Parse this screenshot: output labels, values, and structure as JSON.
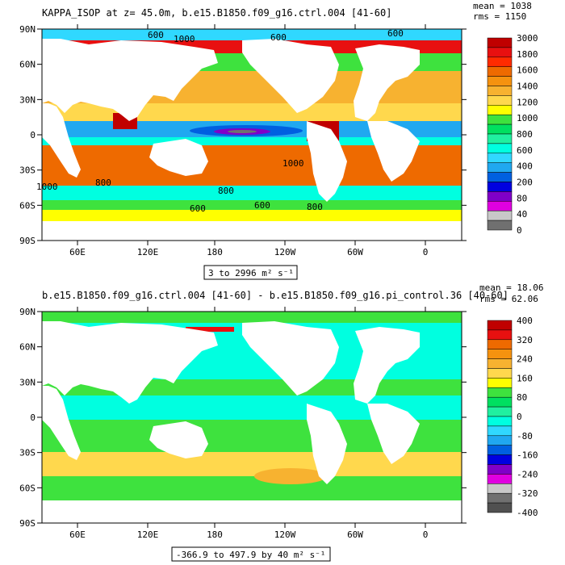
{
  "panels": [
    {
      "title": "KAPPA_ISOP at z=  45.0m, b.e15.B1850.f09_g16.ctrl.004 [41-60]",
      "mean_label": "mean = 1038",
      "rms_label": "rms = 1150",
      "range_label": "3 to 2996 m² s⁻¹",
      "y_labels": [
        "90N",
        "60N",
        "30N",
        "0",
        "30S",
        "60S",
        "90S"
      ],
      "x_labels": [
        "60E",
        "120E",
        "180",
        "120W",
        "60W",
        "0"
      ],
      "colorbar": {
        "labels": [
          "3000",
          "1800",
          "1600",
          "1400",
          "1200",
          "1000",
          "800",
          "600",
          "400",
          "200",
          "80",
          "40",
          "0"
        ],
        "colors": [
          "#c00000",
          "#e81010",
          "#ff2b00",
          "#ee6a00",
          "#f5920f",
          "#f7b230",
          "#ffd84d",
          "#ffff00",
          "#3ee23e",
          "#00e060",
          "#20f0a0",
          "#00ffe0",
          "#30d8ff",
          "#20a8f0",
          "#0060e0",
          "#0000e0",
          "#8000c8",
          "#e000e0",
          "#c8c8c8",
          "#707070"
        ]
      }
    },
    {
      "title": "b.e15.B1850.f09_g16.ctrl.004 [41-60] - b.e15.B1850.f09_g16.pi_control.36 [40-60]",
      "mean_label": "mean = 18.06",
      "rms_label": "rms = 62.06",
      "range_label": "-366.9 to 497.9 by 40 m² s⁻¹",
      "y_labels": [
        "90N",
        "60N",
        "30N",
        "0",
        "30S",
        "60S",
        "90S"
      ],
      "x_labels": [
        "60E",
        "120E",
        "180",
        "120W",
        "60W",
        "0"
      ],
      "colorbar": {
        "labels": [
          "400",
          "320",
          "240",
          "160",
          "80",
          "0",
          "-80",
          "-160",
          "-240",
          "-320",
          "-400"
        ],
        "colors": [
          "#c00000",
          "#e81010",
          "#ee6a00",
          "#f5920f",
          "#f7b230",
          "#ffd84d",
          "#ffff00",
          "#3ee23e",
          "#00e060",
          "#20f0a0",
          "#00ffe0",
          "#30d8ff",
          "#20a8f0",
          "#0060e0",
          "#0000e0",
          "#8000c8",
          "#e000e0",
          "#c8c8c8",
          "#707070",
          "#505050"
        ]
      }
    }
  ],
  "contour_labels": [
    "600",
    "600",
    "1000",
    "600",
    "1000",
    "800",
    "800",
    "600",
    "600",
    "800",
    "1000"
  ],
  "colors": {
    "land": "#ffffff",
    "ocean_top": "#f5a030",
    "ocean_bottom": "#40f0e0"
  }
}
